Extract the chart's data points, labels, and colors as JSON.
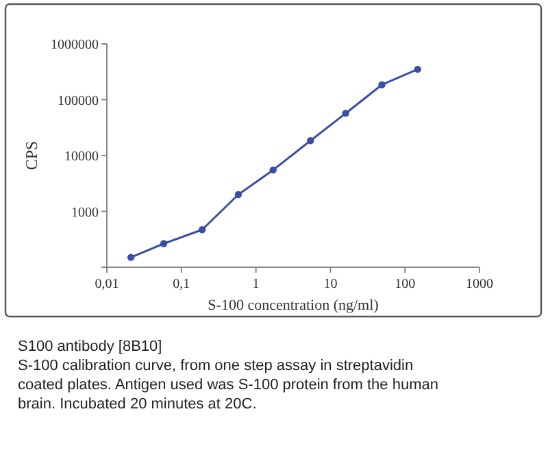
{
  "chart_data": {
    "type": "line",
    "xlabel": "S-100 concentration (ng/ml)",
    "ylabel": "CPS",
    "log": "xy",
    "marker": "circle",
    "line_style": "solid",
    "grid": false,
    "x": [
      0.021,
      0.058,
      0.19,
      0.58,
      1.7,
      5.4,
      16,
      49,
      148
    ],
    "series": [
      {
        "color": "#3b4ea6",
        "values": [
          150,
          265,
          470,
          2000,
          5500,
          18500,
          57000,
          185000,
          350000
        ]
      }
    ],
    "xlim": [
      0.01,
      1000
    ],
    "xticks": [
      {
        "value": 0.01,
        "label": "0,01"
      },
      {
        "value": 0.1,
        "label": "0,1"
      },
      1,
      10,
      100,
      1000
    ],
    "ylim": [
      100,
      1000000
    ],
    "yticks": [
      {
        "value": 100,
        "label": null
      },
      1000,
      10000,
      100000,
      1000000
    ],
    "annotations": [
      "S100 antibody [8B10]",
      "S-100 calibration curve, from one step assay in streptavidin coated plates. Antigen used was S-100 protein from the human brain. Incubated 20 minutes at 20C."
    ]
  }
}
